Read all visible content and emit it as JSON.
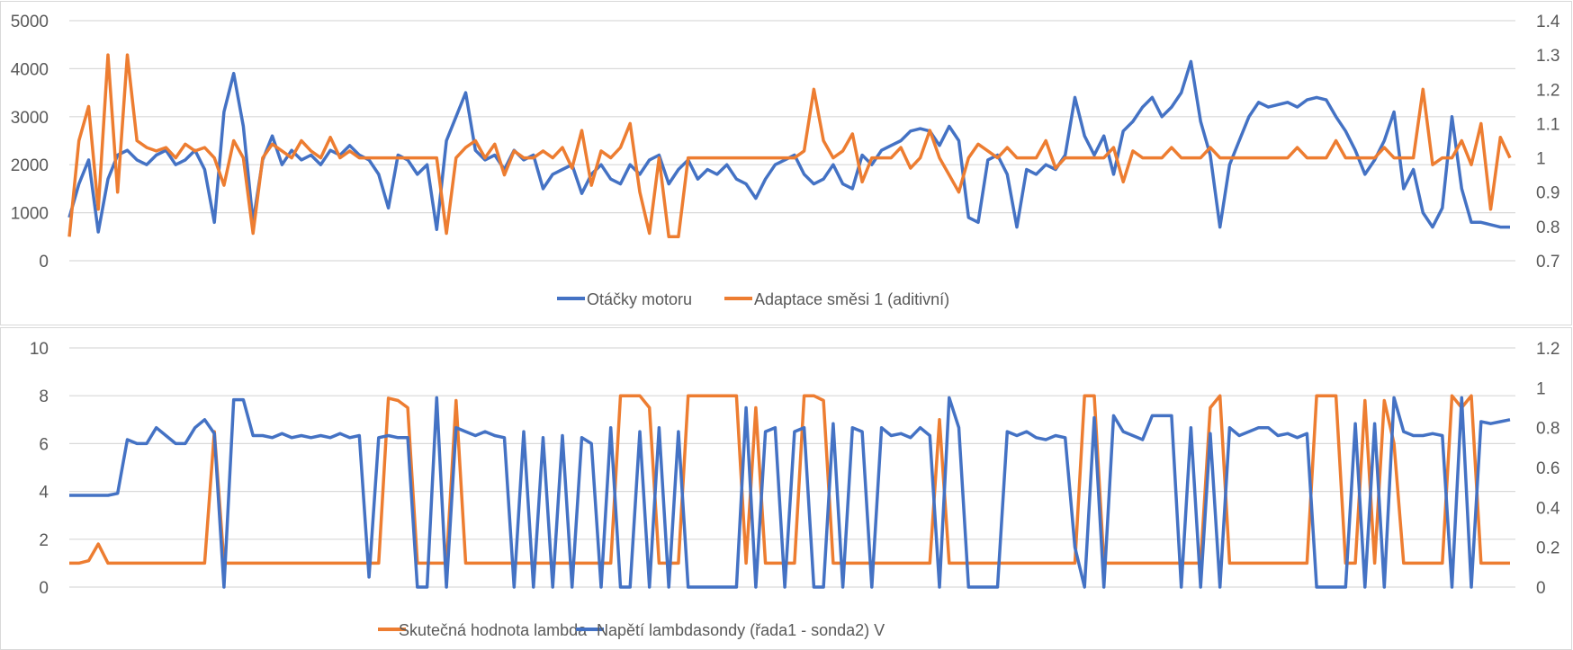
{
  "colors": {
    "blue": "#4472C4",
    "orange": "#ED7D31",
    "grid": "#D9D9D9",
    "text": "#595959"
  },
  "chart_data": [
    {
      "type": "line",
      "title": "",
      "grid": true,
      "legend_placement": "bottom",
      "left_axis": {
        "ylim": [
          0,
          5000
        ],
        "ticks": [
          "0",
          "1000",
          "2000",
          "3000",
          "4000",
          "5000"
        ]
      },
      "right_axis": {
        "ylim": [
          0.7,
          1.4
        ],
        "ticks": [
          "0.7",
          "0.8",
          "0.9",
          "1",
          "1.1",
          "1.2",
          "1.3",
          "1.4"
        ]
      },
      "series": [
        {
          "name": "Otáčky motoru",
          "axis": "left",
          "color": "#4472C4",
          "values": [
            900,
            1600,
            2100,
            600,
            1700,
            2200,
            2300,
            2100,
            2000,
            2200,
            2300,
            2000,
            2100,
            2300,
            1900,
            800,
            3100,
            3900,
            2800,
            800,
            2100,
            2600,
            2000,
            2300,
            2100,
            2200,
            2000,
            2300,
            2200,
            2400,
            2200,
            2100,
            1800,
            1100,
            2200,
            2100,
            1800,
            2000,
            650,
            2500,
            3000,
            3500,
            2300,
            2100,
            2200,
            1900,
            2300,
            2100,
            2200,
            1500,
            1800,
            1900,
            2000,
            1400,
            1800,
            2000,
            1700,
            1600,
            2000,
            1800,
            2100,
            2200,
            1600,
            1900,
            2100,
            1700,
            1900,
            1800,
            2000,
            1700,
            1600,
            1300,
            1700,
            2000,
            2100,
            2200,
            1800,
            1600,
            1700,
            2000,
            1600,
            1500,
            2200,
            2000,
            2300,
            2400,
            2500,
            2700,
            2750,
            2700,
            2400,
            2800,
            2500,
            900,
            800,
            2100,
            2200,
            1800,
            700,
            1900,
            1800,
            2000,
            1900,
            2200,
            3400,
            2600,
            2200,
            2600,
            1800,
            2700,
            2900,
            3200,
            3400,
            3000,
            3200,
            3500,
            4150,
            2900,
            2200,
            700,
            2000,
            2500,
            3000,
            3300,
            3200,
            3250,
            3300,
            3200,
            3350,
            3400,
            3350,
            3000,
            2700,
            2300,
            1800,
            2100,
            2500,
            3100,
            1500,
            1900,
            1000,
            700,
            1100,
            3000,
            1500,
            800,
            800,
            750,
            700,
            700
          ]
        },
        {
          "name": "Adaptace směsi 1 (aditivní)",
          "axis": "right",
          "color": "#ED7D31",
          "values": [
            0.77,
            1.05,
            1.15,
            0.85,
            1.3,
            0.9,
            1.3,
            1.05,
            1.03,
            1.02,
            1.03,
            1.0,
            1.04,
            1.02,
            1.03,
            1.0,
            0.92,
            1.05,
            1.0,
            0.78,
            1.0,
            1.04,
            1.02,
            1.0,
            1.05,
            1.02,
            1.0,
            1.06,
            1.0,
            1.02,
            1.0,
            1.0,
            1.0,
            1.0,
            1.0,
            1.0,
            1.0,
            1.0,
            1.0,
            0.78,
            1.0,
            1.03,
            1.05,
            1.0,
            1.04,
            0.95,
            1.02,
            1.0,
            1.0,
            1.02,
            1.0,
            1.03,
            0.97,
            1.08,
            0.92,
            1.02,
            1.0,
            1.03,
            1.1,
            0.9,
            0.78,
            1.0,
            0.77,
            0.77,
            1.0,
            1.0,
            1.0,
            1.0,
            1.0,
            1.0,
            1.0,
            1.0,
            1.0,
            1.0,
            1.0,
            1.0,
            1.02,
            1.2,
            1.05,
            1.0,
            1.02,
            1.07,
            0.93,
            1.0,
            1.0,
            1.0,
            1.03,
            0.97,
            1.0,
            1.08,
            1.0,
            0.95,
            0.9,
            1.0,
            1.04,
            1.02,
            1.0,
            1.03,
            1.0,
            1.0,
            1.0,
            1.05,
            0.97,
            1.0,
            1.0,
            1.0,
            1.0,
            1.0,
            1.03,
            0.93,
            1.02,
            1.0,
            1.0,
            1.0,
            1.03,
            1.0,
            1.0,
            1.0,
            1.03,
            1.0,
            1.0,
            1.0,
            1.0,
            1.0,
            1.0,
            1.0,
            1.0,
            1.03,
            1.0,
            1.0,
            1.0,
            1.05,
            1.0,
            1.0,
            1.0,
            1.0,
            1.03,
            1.0,
            1.0,
            1.0,
            1.2,
            0.98,
            1.0,
            1.0,
            1.05,
            0.98,
            1.1,
            0.85,
            1.06,
            1.0
          ]
        }
      ]
    },
    {
      "type": "line",
      "title": "",
      "grid": true,
      "legend_placement": "bottom",
      "left_axis": {
        "ylim": [
          0,
          10
        ],
        "ticks": [
          "0",
          "2",
          "4",
          "6",
          "8",
          "10"
        ]
      },
      "right_axis": {
        "ylim": [
          0,
          1.2
        ],
        "ticks": [
          "0",
          "0.2",
          "0.4",
          "0.6",
          "0.8",
          "1",
          "1.2"
        ]
      },
      "series": [
        {
          "name": "Skutečná hodnota lambda",
          "axis": "left",
          "color": "#ED7D31",
          "values": [
            1.0,
            1.0,
            1.1,
            1.8,
            1.0,
            1.0,
            1.0,
            1.0,
            1.0,
            1.0,
            1.0,
            1.0,
            1.0,
            1.0,
            1.0,
            6.5,
            1.0,
            1.0,
            1.0,
            1.0,
            1.0,
            1.0,
            1.0,
            1.0,
            1.0,
            1.0,
            1.0,
            1.0,
            1.0,
            1.0,
            1.0,
            1.0,
            1.0,
            7.9,
            7.8,
            7.5,
            1.0,
            1.0,
            1.0,
            1.0,
            7.8,
            1.0,
            1.0,
            1.0,
            1.0,
            1.0,
            1.0,
            1.0,
            1.0,
            1.0,
            1.0,
            1.0,
            1.0,
            1.0,
            1.0,
            1.0,
            1.0,
            8.0,
            8.0,
            8.0,
            7.5,
            1.0,
            1.0,
            1.0,
            8.0,
            8.0,
            8.0,
            8.0,
            8.0,
            8.0,
            1.0,
            7.5,
            1.0,
            1.0,
            1.0,
            1.0,
            8.0,
            8.0,
            7.8,
            1.0,
            1.0,
            1.0,
            1.0,
            1.0,
            1.0,
            1.0,
            1.0,
            1.0,
            1.0,
            1.0,
            7.0,
            1.0,
            1.0,
            1.0,
            1.0,
            1.0,
            1.0,
            1.0,
            1.0,
            1.0,
            1.0,
            1.0,
            1.0,
            1.0,
            1.0,
            8.0,
            8.0,
            1.0,
            1.0,
            1.0,
            1.0,
            1.0,
            1.0,
            1.0,
            1.0,
            1.0,
            1.0,
            1.0,
            7.5,
            8.0,
            1.0,
            1.0,
            1.0,
            1.0,
            1.0,
            1.0,
            1.0,
            1.0,
            1.0,
            8.0,
            8.0,
            8.0,
            1.0,
            1.0,
            7.8,
            1.0,
            7.8,
            6.0,
            1.0,
            1.0,
            1.0,
            1.0,
            1.0,
            8.0,
            7.5,
            8.0,
            1.0,
            1.0,
            1.0,
            1.0
          ]
        },
        {
          "name": "Napětí lambdasondy (řada1 - sonda2) V",
          "axis": "right",
          "color": "#4472C4",
          "values": [
            0.46,
            0.46,
            0.46,
            0.46,
            0.46,
            0.47,
            0.74,
            0.72,
            0.72,
            0.8,
            0.76,
            0.72,
            0.72,
            0.8,
            0.84,
            0.77,
            0.0,
            0.94,
            0.94,
            0.76,
            0.76,
            0.75,
            0.77,
            0.75,
            0.76,
            0.75,
            0.76,
            0.75,
            0.77,
            0.75,
            0.76,
            0.05,
            0.75,
            0.76,
            0.75,
            0.75,
            0.0,
            0.0,
            0.95,
            0.0,
            0.8,
            0.78,
            0.76,
            0.78,
            0.76,
            0.75,
            0.0,
            0.78,
            0.0,
            0.75,
            0.0,
            0.76,
            0.0,
            0.75,
            0.72,
            0.0,
            0.8,
            0.0,
            0.0,
            0.78,
            0.0,
            0.8,
            0.0,
            0.78,
            0.0,
            0.0,
            0.0,
            0.0,
            0.0,
            0.0,
            0.9,
            0.0,
            0.78,
            0.8,
            0.0,
            0.78,
            0.8,
            0.0,
            0.0,
            0.82,
            0.0,
            0.8,
            0.78,
            0.0,
            0.8,
            0.76,
            0.77,
            0.75,
            0.8,
            0.76,
            0.0,
            0.95,
            0.8,
            0.0,
            0.0,
            0.0,
            0.0,
            0.78,
            0.76,
            0.78,
            0.75,
            0.74,
            0.76,
            0.75,
            0.2,
            0.0,
            0.85,
            0.0,
            0.86,
            0.78,
            0.76,
            0.74,
            0.86,
            0.86,
            0.86,
            0.0,
            0.8,
            0.0,
            0.77,
            0.0,
            0.8,
            0.76,
            0.78,
            0.8,
            0.8,
            0.76,
            0.77,
            0.75,
            0.77,
            0.0,
            0.0,
            0.0,
            0.0,
            0.82,
            0.0,
            0.82,
            0.0,
            0.95,
            0.78,
            0.76,
            0.76,
            0.77,
            0.76,
            0.0,
            0.95,
            0.0,
            0.83,
            0.82,
            0.83,
            0.84
          ]
        }
      ]
    }
  ]
}
